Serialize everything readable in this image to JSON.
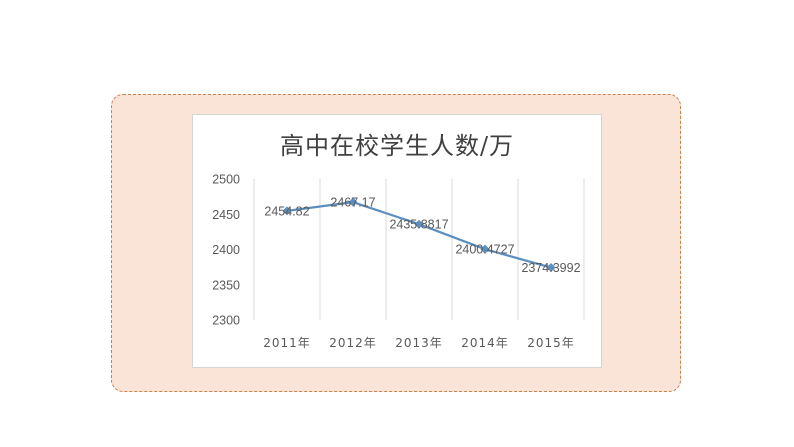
{
  "chart_data": {
    "type": "line",
    "title": "高中在校学生人数/万",
    "categories": [
      "2011年",
      "2012年",
      "2013年",
      "2014年",
      "2015年"
    ],
    "series": [
      {
        "values": [
          2454.82,
          2467.17,
          2435.8817,
          2400.4727,
          2374.3992
        ],
        "labels": [
          "2454.82",
          "2467.17",
          "2435.8817",
          "2400.4727",
          "2374.3992"
        ]
      }
    ],
    "yticks": [
      2300,
      2350,
      2400,
      2450,
      2500
    ],
    "ylim": [
      2300,
      2500
    ],
    "grid": "vertical",
    "line_color": "#5b8fc0",
    "marker": "diamond"
  }
}
